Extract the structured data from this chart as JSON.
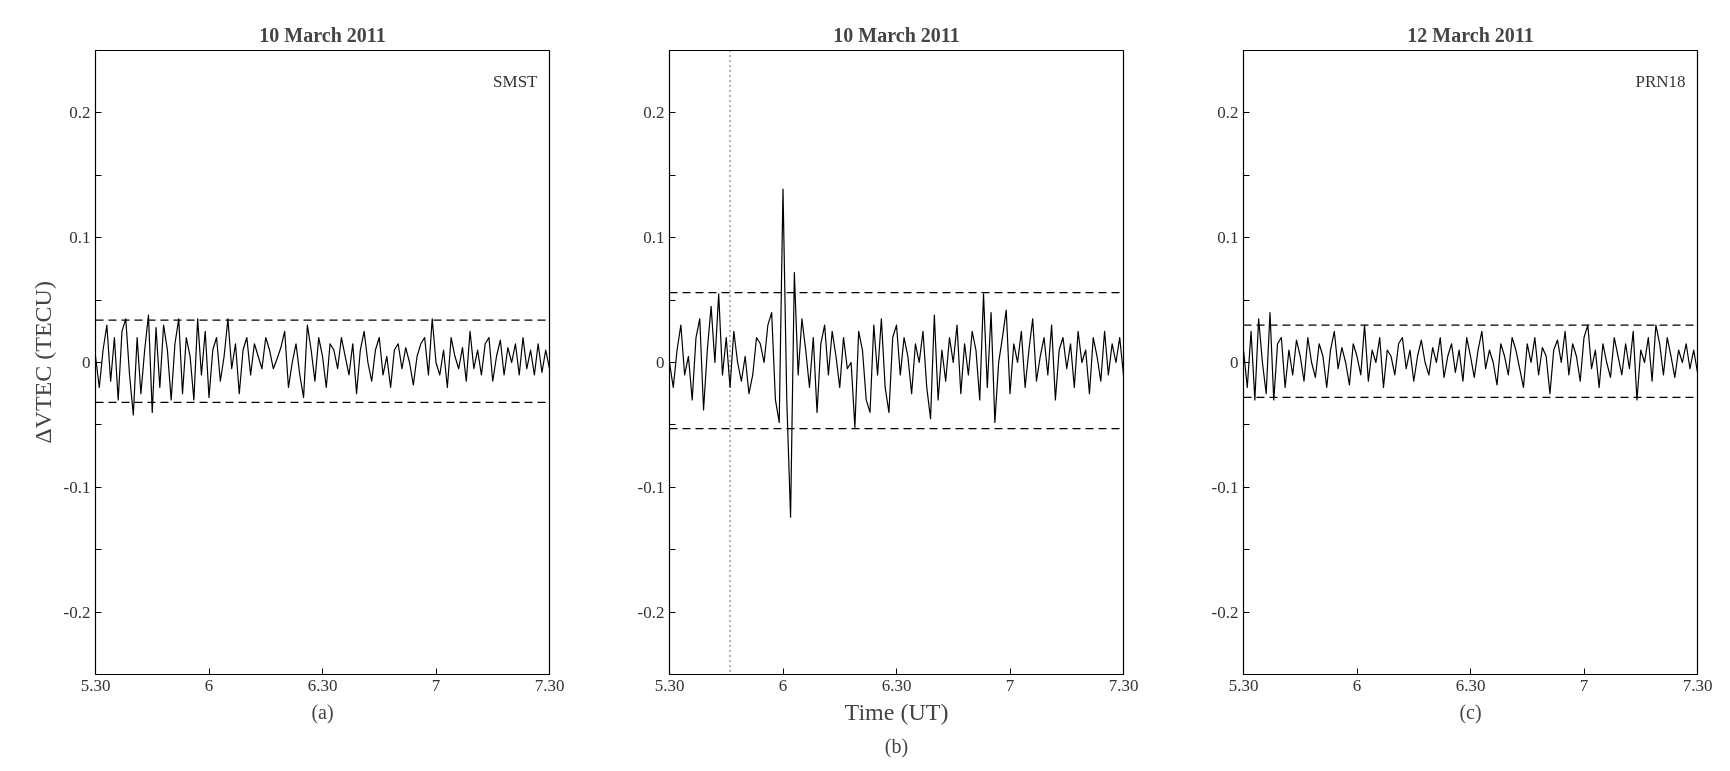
{
  "chart_data": [
    {
      "type": "line",
      "title": "10 March 2011",
      "ylabel": "ΔVTEC (TECU)",
      "annotations": [
        "SMST",
        "(a)"
      ],
      "xlim": [
        "2011-03-10T05:30",
        "2011-03-10T07:30"
      ],
      "ylim": [
        -0.25,
        0.25
      ],
      "xticks": [
        {
          "value": "2011-03-10T05:30",
          "label": "5.30"
        },
        {
          "value": "2011-03-10T06:00",
          "label": "6"
        },
        {
          "value": "2011-03-10T06:30",
          "label": "6.30"
        },
        {
          "value": "2011-03-10T07:00",
          "label": "7"
        },
        {
          "value": "2011-03-10T07:30",
          "label": "7.30"
        }
      ],
      "yticks": [
        -0.2,
        {
          "value": -0.15,
          "label": null
        },
        -0.1,
        {
          "value": -0.05,
          "label": null
        },
        0,
        {
          "value": 0.05,
          "label": null
        },
        0.1,
        {
          "value": 0.15,
          "label": null
        },
        0.2
      ],
      "grid": false,
      "line_style": "solid",
      "marker": "none",
      "ref_lines": [
        {
          "axis": "y",
          "value": 0.034,
          "line_style": "dashed",
          "color": "#000000"
        },
        {
          "axis": "y",
          "value": -0.032,
          "line_style": "dashed",
          "color": "#000000"
        }
      ],
      "x": [
        "2011-03-10T05:30",
        "2011-03-10T05:31",
        "2011-03-10T05:32",
        "2011-03-10T05:33",
        "2011-03-10T05:34",
        "2011-03-10T05:35",
        "2011-03-10T05:36",
        "2011-03-10T05:37",
        "2011-03-10T05:38",
        "2011-03-10T05:39",
        "2011-03-10T05:40",
        "2011-03-10T05:41",
        "2011-03-10T05:42",
        "2011-03-10T05:43",
        "2011-03-10T05:44",
        "2011-03-10T05:45",
        "2011-03-10T05:46",
        "2011-03-10T05:47",
        "2011-03-10T05:48",
        "2011-03-10T05:49",
        "2011-03-10T05:50",
        "2011-03-10T05:51",
        "2011-03-10T05:52",
        "2011-03-10T05:53",
        "2011-03-10T05:54",
        "2011-03-10T05:55",
        "2011-03-10T05:56",
        "2011-03-10T05:57",
        "2011-03-10T05:58",
        "2011-03-10T05:59",
        "2011-03-10T06:00",
        "2011-03-10T06:01",
        "2011-03-10T06:02",
        "2011-03-10T06:03",
        "2011-03-10T06:04",
        "2011-03-10T06:05",
        "2011-03-10T06:06",
        "2011-03-10T06:07",
        "2011-03-10T06:08",
        "2011-03-10T06:09",
        "2011-03-10T06:10",
        "2011-03-10T06:11",
        "2011-03-10T06:12",
        "2011-03-10T06:13",
        "2011-03-10T06:14",
        "2011-03-10T06:15",
        "2011-03-10T06:16",
        "2011-03-10T06:17",
        "2011-03-10T06:18",
        "2011-03-10T06:19",
        "2011-03-10T06:20",
        "2011-03-10T06:21",
        "2011-03-10T06:22",
        "2011-03-10T06:23",
        "2011-03-10T06:24",
        "2011-03-10T06:25",
        "2011-03-10T06:26",
        "2011-03-10T06:27",
        "2011-03-10T06:28",
        "2011-03-10T06:29",
        "2011-03-10T06:30",
        "2011-03-10T06:31",
        "2011-03-10T06:32",
        "2011-03-10T06:33",
        "2011-03-10T06:34",
        "2011-03-10T06:35",
        "2011-03-10T06:36",
        "2011-03-10T06:37",
        "2011-03-10T06:38",
        "2011-03-10T06:39",
        "2011-03-10T06:40",
        "2011-03-10T06:41",
        "2011-03-10T06:42",
        "2011-03-10T06:43",
        "2011-03-10T06:44",
        "2011-03-10T06:45",
        "2011-03-10T06:46",
        "2011-03-10T06:47",
        "2011-03-10T06:48",
        "2011-03-10T06:49",
        "2011-03-10T06:50",
        "2011-03-10T06:51",
        "2011-03-10T06:52",
        "2011-03-10T06:53",
        "2011-03-10T06:54",
        "2011-03-10T06:55",
        "2011-03-10T06:56",
        "2011-03-10T06:57",
        "2011-03-10T06:58",
        "2011-03-10T06:59",
        "2011-03-10T07:00",
        "2011-03-10T07:01",
        "2011-03-10T07:02",
        "2011-03-10T07:03",
        "2011-03-10T07:04",
        "2011-03-10T07:05",
        "2011-03-10T07:06",
        "2011-03-10T07:07",
        "2011-03-10T07:08",
        "2011-03-10T07:09",
        "2011-03-10T07:10",
        "2011-03-10T07:11",
        "2011-03-10T07:12",
        "2011-03-10T07:13",
        "2011-03-10T07:14",
        "2011-03-10T07:15",
        "2011-03-10T07:16",
        "2011-03-10T07:17",
        "2011-03-10T07:18",
        "2011-03-10T07:19",
        "2011-03-10T07:20",
        "2011-03-10T07:21",
        "2011-03-10T07:22",
        "2011-03-10T07:23",
        "2011-03-10T07:24",
        "2011-03-10T07:25",
        "2011-03-10T07:26",
        "2011-03-10T07:27",
        "2011-03-10T07:28",
        "2011-03-10T07:29",
        "2011-03-10T07:30"
      ],
      "series": [
        {
          "color": "#000000",
          "values": [
            0.005,
            -0.02,
            0.01,
            0.03,
            -0.015,
            0.02,
            -0.03,
            0.025,
            0.035,
            -0.01,
            -0.042,
            0.02,
            -0.025,
            0.01,
            0.038,
            -0.04,
            0.028,
            -0.02,
            0.03,
            0.01,
            -0.03,
            0.015,
            0.035,
            -0.025,
            0.02,
            0.005,
            -0.03,
            0.035,
            -0.01,
            0.025,
            -0.028,
            0.01,
            0.02,
            -0.015,
            0.005,
            0.035,
            -0.005,
            0.015,
            -0.025,
            0.01,
            0.02,
            -0.01,
            0.015,
            0.005,
            -0.005,
            0.02,
            0.01,
            -0.005,
            0.003,
            0.012,
            0.025,
            -0.02,
            0.0,
            0.015,
            -0.01,
            -0.028,
            0.03,
            0.01,
            -0.015,
            0.02,
            0.005,
            -0.02,
            0.015,
            0.01,
            -0.005,
            0.02,
            0.005,
            -0.01,
            0.015,
            -0.025,
            0.01,
            0.025,
            0.0,
            -0.015,
            0.01,
            0.02,
            -0.01,
            0.005,
            -0.02,
            0.01,
            0.015,
            -0.005,
            0.012,
            0.0,
            -0.018,
            0.005,
            0.015,
            0.02,
            -0.01,
            0.035,
            0.0,
            -0.01,
            0.01,
            -0.02,
            0.02,
            0.005,
            -0.005,
            0.012,
            -0.015,
            0.025,
            -0.005,
            0.01,
            -0.01,
            0.015,
            0.02,
            -0.015,
            0.005,
            0.018,
            -0.01,
            0.012,
            0.0,
            0.015,
            -0.01,
            0.02,
            -0.005,
            0.01,
            -0.01,
            0.015,
            -0.008,
            0.01,
            -0.005
          ]
        }
      ]
    },
    {
      "type": "line",
      "title": "10 March 2011",
      "xlabel": "Time (UT)",
      "annotations": [
        "(b)"
      ],
      "xlim": [
        "2011-03-10T05:30",
        "2011-03-10T07:30"
      ],
      "ylim": [
        -0.25,
        0.25
      ],
      "xticks": [
        {
          "value": "2011-03-10T05:30",
          "label": "5.30"
        },
        {
          "value": "2011-03-10T06:00",
          "label": "6"
        },
        {
          "value": "2011-03-10T06:30",
          "label": "6.30"
        },
        {
          "value": "2011-03-10T07:00",
          "label": "7"
        },
        {
          "value": "2011-03-10T07:30",
          "label": "7.30"
        }
      ],
      "yticks": [
        -0.2,
        {
          "value": -0.15,
          "label": null
        },
        -0.1,
        {
          "value": -0.05,
          "label": null
        },
        0,
        {
          "value": 0.05,
          "label": null
        },
        0.1,
        {
          "value": 0.15,
          "label": null
        },
        0.2
      ],
      "grid": false,
      "line_style": "solid",
      "marker": "none",
      "ref_lines": [
        {
          "axis": "y",
          "value": 0.056,
          "line_style": "dashed",
          "color": "#000000"
        },
        {
          "axis": "y",
          "value": -0.053,
          "line_style": "dashed",
          "color": "#000000"
        },
        {
          "axis": "x",
          "value": "2011-03-10T05:46",
          "line_style": "dotted",
          "color": "#000000"
        }
      ],
      "x": [
        "2011-03-10T05:30",
        "2011-03-10T05:31",
        "2011-03-10T05:32",
        "2011-03-10T05:33",
        "2011-03-10T05:34",
        "2011-03-10T05:35",
        "2011-03-10T05:36",
        "2011-03-10T05:37",
        "2011-03-10T05:38",
        "2011-03-10T05:39",
        "2011-03-10T05:40",
        "2011-03-10T05:41",
        "2011-03-10T05:42",
        "2011-03-10T05:43",
        "2011-03-10T05:44",
        "2011-03-10T05:45",
        "2011-03-10T05:46",
        "2011-03-10T05:47",
        "2011-03-10T05:48",
        "2011-03-10T05:49",
        "2011-03-10T05:50",
        "2011-03-10T05:51",
        "2011-03-10T05:52",
        "2011-03-10T05:53",
        "2011-03-10T05:54",
        "2011-03-10T05:55",
        "2011-03-10T05:56",
        "2011-03-10T05:57",
        "2011-03-10T05:58",
        "2011-03-10T05:59",
        "2011-03-10T06:00",
        "2011-03-10T06:01",
        "2011-03-10T06:02",
        "2011-03-10T06:03",
        "2011-03-10T06:04",
        "2011-03-10T06:05",
        "2011-03-10T06:06",
        "2011-03-10T06:07",
        "2011-03-10T06:08",
        "2011-03-10T06:09",
        "2011-03-10T06:10",
        "2011-03-10T06:11",
        "2011-03-10T06:12",
        "2011-03-10T06:13",
        "2011-03-10T06:14",
        "2011-03-10T06:15",
        "2011-03-10T06:16",
        "2011-03-10T06:17",
        "2011-03-10T06:18",
        "2011-03-10T06:19",
        "2011-03-10T06:20",
        "2011-03-10T06:21",
        "2011-03-10T06:22",
        "2011-03-10T06:23",
        "2011-03-10T06:24",
        "2011-03-10T06:25",
        "2011-03-10T06:26",
        "2011-03-10T06:27",
        "2011-03-10T06:28",
        "2011-03-10T06:29",
        "2011-03-10T06:30",
        "2011-03-10T06:31",
        "2011-03-10T06:32",
        "2011-03-10T06:33",
        "2011-03-10T06:34",
        "2011-03-10T06:35",
        "2011-03-10T06:36",
        "2011-03-10T06:37",
        "2011-03-10T06:38",
        "2011-03-10T06:39",
        "2011-03-10T06:40",
        "2011-03-10T06:41",
        "2011-03-10T06:42",
        "2011-03-10T06:43",
        "2011-03-10T06:44",
        "2011-03-10T06:45",
        "2011-03-10T06:46",
        "2011-03-10T06:47",
        "2011-03-10T06:48",
        "2011-03-10T06:49",
        "2011-03-10T06:50",
        "2011-03-10T06:51",
        "2011-03-10T06:52",
        "2011-03-10T06:53",
        "2011-03-10T06:54",
        "2011-03-10T06:55",
        "2011-03-10T06:56",
        "2011-03-10T06:57",
        "2011-03-10T06:58",
        "2011-03-10T06:59",
        "2011-03-10T07:00",
        "2011-03-10T07:01",
        "2011-03-10T07:02",
        "2011-03-10T07:03",
        "2011-03-10T07:04",
        "2011-03-10T07:05",
        "2011-03-10T07:06",
        "2011-03-10T07:07",
        "2011-03-10T07:08",
        "2011-03-10T07:09",
        "2011-03-10T07:10",
        "2011-03-10T07:11",
        "2011-03-10T07:12",
        "2011-03-10T07:13",
        "2011-03-10T07:14",
        "2011-03-10T07:15",
        "2011-03-10T07:16",
        "2011-03-10T07:17",
        "2011-03-10T07:18",
        "2011-03-10T07:19",
        "2011-03-10T07:20",
        "2011-03-10T07:21",
        "2011-03-10T07:22",
        "2011-03-10T07:23",
        "2011-03-10T07:24",
        "2011-03-10T07:25",
        "2011-03-10T07:26",
        "2011-03-10T07:27",
        "2011-03-10T07:28",
        "2011-03-10T07:29",
        "2011-03-10T07:30"
      ],
      "series": [
        {
          "color": "#000000",
          "values": [
            0.0,
            -0.02,
            0.01,
            0.03,
            -0.01,
            0.005,
            -0.03,
            0.02,
            0.035,
            -0.038,
            0.01,
            0.045,
            0.0,
            0.055,
            -0.01,
            0.02,
            -0.02,
            0.025,
            0.0,
            -0.015,
            0.005,
            -0.025,
            -0.01,
            0.02,
            0.015,
            0.0,
            0.03,
            0.04,
            -0.03,
            -0.048,
            0.139,
            -0.03,
            -0.124,
            0.072,
            -0.01,
            0.035,
            0.01,
            -0.02,
            0.02,
            -0.04,
            0.015,
            0.03,
            -0.01,
            0.025,
            0.005,
            -0.02,
            0.02,
            -0.005,
            0.0,
            -0.052,
            0.025,
            0.01,
            -0.03,
            -0.04,
            0.03,
            -0.01,
            0.035,
            -0.02,
            -0.04,
            0.02,
            0.03,
            -0.01,
            0.02,
            0.005,
            -0.025,
            0.015,
            0.0,
            0.025,
            -0.02,
            -0.045,
            0.038,
            -0.03,
            0.01,
            -0.015,
            0.02,
            0.0,
            0.03,
            -0.025,
            0.015,
            -0.01,
            0.025,
            0.01,
            -0.03,
            0.055,
            -0.02,
            0.04,
            -0.048,
            0.0,
            0.02,
            0.042,
            -0.025,
            0.015,
            0.0,
            0.025,
            -0.02,
            0.01,
            0.035,
            -0.015,
            0.005,
            0.02,
            -0.01,
            0.03,
            -0.03,
            0.01,
            0.02,
            -0.005,
            0.015,
            -0.02,
            0.025,
            0.0,
            0.01,
            -0.025,
            0.02,
            0.005,
            -0.015,
            0.025,
            -0.01,
            0.015,
            0.0,
            0.02,
            -0.01
          ]
        }
      ]
    },
    {
      "type": "line",
      "title": "12 March 2011",
      "annotations": [
        "PRN18",
        "(c)"
      ],
      "xlim": [
        "2011-03-12T05:30",
        "2011-03-12T07:30"
      ],
      "ylim": [
        -0.25,
        0.25
      ],
      "xticks": [
        {
          "value": "2011-03-12T05:30",
          "label": "5.30"
        },
        {
          "value": "2011-03-12T06:00",
          "label": "6"
        },
        {
          "value": "2011-03-12T06:30",
          "label": "6.30"
        },
        {
          "value": "2011-03-12T07:00",
          "label": "7"
        },
        {
          "value": "2011-03-12T07:30",
          "label": "7.30"
        }
      ],
      "yticks": [
        -0.2,
        {
          "value": -0.15,
          "label": null
        },
        -0.1,
        {
          "value": -0.05,
          "label": null
        },
        0,
        {
          "value": 0.05,
          "label": null
        },
        0.1,
        {
          "value": 0.15,
          "label": null
        },
        0.2
      ],
      "grid": false,
      "line_style": "solid",
      "marker": "none",
      "ref_lines": [
        {
          "axis": "y",
          "value": 0.03,
          "line_style": "dashed",
          "color": "#000000"
        },
        {
          "axis": "y",
          "value": -0.028,
          "line_style": "dashed",
          "color": "#000000"
        }
      ],
      "x": [
        "2011-03-12T05:30",
        "2011-03-12T05:31",
        "2011-03-12T05:32",
        "2011-03-12T05:33",
        "2011-03-12T05:34",
        "2011-03-12T05:35",
        "2011-03-12T05:36",
        "2011-03-12T05:37",
        "2011-03-12T05:38",
        "2011-03-12T05:39",
        "2011-03-12T05:40",
        "2011-03-12T05:41",
        "2011-03-12T05:42",
        "2011-03-12T05:43",
        "2011-03-12T05:44",
        "2011-03-12T05:45",
        "2011-03-12T05:46",
        "2011-03-12T05:47",
        "2011-03-12T05:48",
        "2011-03-12T05:49",
        "2011-03-12T05:50",
        "2011-03-12T05:51",
        "2011-03-12T05:52",
        "2011-03-12T05:53",
        "2011-03-12T05:54",
        "2011-03-12T05:55",
        "2011-03-12T05:56",
        "2011-03-12T05:57",
        "2011-03-12T05:58",
        "2011-03-12T05:59",
        "2011-03-12T06:00",
        "2011-03-12T06:01",
        "2011-03-12T06:02",
        "2011-03-12T06:03",
        "2011-03-12T06:04",
        "2011-03-12T06:05",
        "2011-03-12T06:06",
        "2011-03-12T06:07",
        "2011-03-12T06:08",
        "2011-03-12T06:09",
        "2011-03-12T06:10",
        "2011-03-12T06:11",
        "2011-03-12T06:12",
        "2011-03-12T06:13",
        "2011-03-12T06:14",
        "2011-03-12T06:15",
        "2011-03-12T06:16",
        "2011-03-12T06:17",
        "2011-03-12T06:18",
        "2011-03-12T06:19",
        "2011-03-12T06:20",
        "2011-03-12T06:21",
        "2011-03-12T06:22",
        "2011-03-12T06:23",
        "2011-03-12T06:24",
        "2011-03-12T06:25",
        "2011-03-12T06:26",
        "2011-03-12T06:27",
        "2011-03-12T06:28",
        "2011-03-12T06:29",
        "2011-03-12T06:30",
        "2011-03-12T06:31",
        "2011-03-12T06:32",
        "2011-03-12T06:33",
        "2011-03-12T06:34",
        "2011-03-12T06:35",
        "2011-03-12T06:36",
        "2011-03-12T06:37",
        "2011-03-12T06:38",
        "2011-03-12T06:39",
        "2011-03-12T06:40",
        "2011-03-12T06:41",
        "2011-03-12T06:42",
        "2011-03-12T06:43",
        "2011-03-12T06:44",
        "2011-03-12T06:45",
        "2011-03-12T06:46",
        "2011-03-12T06:47",
        "2011-03-12T06:48",
        "2011-03-12T06:49",
        "2011-03-12T06:50",
        "2011-03-12T06:51",
        "2011-03-12T06:52",
        "2011-03-12T06:53",
        "2011-03-12T06:54",
        "2011-03-12T06:55",
        "2011-03-12T06:56",
        "2011-03-12T06:57",
        "2011-03-12T06:58",
        "2011-03-12T06:59",
        "2011-03-12T07:00",
        "2011-03-12T07:01",
        "2011-03-12T07:02",
        "2011-03-12T07:03",
        "2011-03-12T07:04",
        "2011-03-12T07:05",
        "2011-03-12T07:06",
        "2011-03-12T07:07",
        "2011-03-12T07:08",
        "2011-03-12T07:09",
        "2011-03-12T07:10",
        "2011-03-12T07:11",
        "2011-03-12T07:12",
        "2011-03-12T07:13",
        "2011-03-12T07:14",
        "2011-03-12T07:15",
        "2011-03-12T07:16",
        "2011-03-12T07:17",
        "2011-03-12T07:18",
        "2011-03-12T07:19",
        "2011-03-12T07:20",
        "2011-03-12T07:21",
        "2011-03-12T07:22",
        "2011-03-12T07:23",
        "2011-03-12T07:24",
        "2011-03-12T07:25",
        "2011-03-12T07:26",
        "2011-03-12T07:27",
        "2011-03-12T07:28",
        "2011-03-12T07:29",
        "2011-03-12T07:30"
      ],
      "series": [
        {
          "color": "#000000",
          "values": [
            0.01,
            -0.02,
            0.025,
            -0.03,
            0.035,
            0.0,
            -0.025,
            0.04,
            -0.03,
            0.015,
            0.02,
            -0.02,
            0.01,
            -0.01,
            0.018,
            0.005,
            -0.015,
            0.02,
            0.0,
            -0.012,
            0.015,
            0.005,
            -0.02,
            0.01,
            0.025,
            -0.005,
            0.012,
            0.0,
            -0.018,
            0.015,
            0.005,
            -0.01,
            0.03,
            -0.015,
            0.01,
            0.0,
            0.02,
            -0.02,
            0.01,
            0.005,
            -0.01,
            0.015,
            0.02,
            -0.005,
            0.01,
            -0.015,
            0.005,
            0.018,
            0.0,
            -0.01,
            0.012,
            0.0,
            0.02,
            -0.012,
            0.005,
            0.015,
            -0.008,
            0.01,
            -0.015,
            0.02,
            0.005,
            -0.012,
            0.01,
            0.025,
            -0.005,
            0.01,
            0.0,
            -0.018,
            0.015,
            0.005,
            -0.01,
            0.02,
            0.01,
            -0.005,
            -0.02,
            0.015,
            0.0,
            0.02,
            -0.01,
            0.012,
            0.005,
            -0.025,
            0.01,
            0.018,
            0.0,
            0.025,
            -0.01,
            0.015,
            0.005,
            -0.015,
            0.02,
            0.03,
            -0.005,
            0.01,
            -0.02,
            0.015,
            0.0,
            -0.012,
            0.02,
            0.005,
            -0.01,
            0.015,
            -0.005,
            0.025,
            -0.03,
            0.01,
            0.0,
            0.02,
            -0.015,
            0.03,
            0.015,
            -0.01,
            0.02,
            0.005,
            -0.012,
            0.01,
            0.0,
            0.015,
            -0.005,
            0.01,
            -0.008
          ]
        }
      ]
    }
  ]
}
